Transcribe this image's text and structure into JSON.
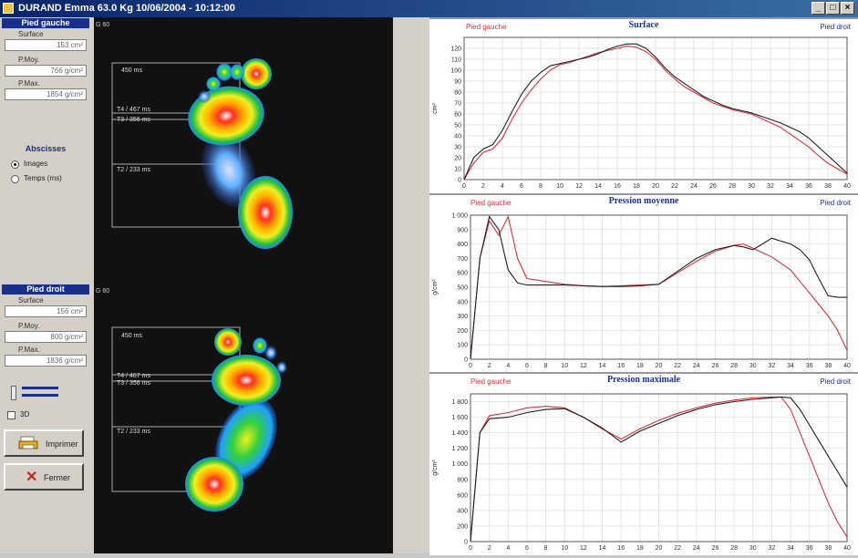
{
  "window": {
    "title": "DURAND Emma 63.0 Kg    10/06/2004 - 10:12:00"
  },
  "left_foot": {
    "header": "Pied gauche",
    "surface_label": "Surface",
    "surface_value": "153 cm²",
    "pmoy_label": "P.Moy.",
    "pmoy_value": "766 g/cm²",
    "pmax_label": "P.Max.",
    "pmax_value": "1854 g/cm²"
  },
  "abscisses": {
    "title": "Abscisses",
    "opt1": "Images",
    "opt2": "Temps (ms)"
  },
  "right_foot": {
    "header": "Pied droit",
    "surface_label": "Surface",
    "surface_value": "156 cm²",
    "pmoy_label": "P.Moy.",
    "pmoy_value": "800 g/cm²",
    "pmax_label": "P.Max.",
    "pmax_value": "1836 g/cm²"
  },
  "opt_3d": "3D",
  "buttons": {
    "print": "Imprimer",
    "close": "Fermer"
  },
  "foot_images": {
    "left": {
      "corner": "G 60",
      "t1": "450 ms",
      "t4": "T4 / 467 ms",
      "t3": "T3 / 356 ms",
      "t2": "T2 / 233 ms"
    },
    "right": {
      "corner": "G 60",
      "t1": "450 ms",
      "t4": "T4 / 467 ms",
      "t3": "T3 / 356 ms",
      "t2": "T2 / 233 ms"
    }
  },
  "colors": {
    "left": "#e0303a",
    "right": "#202020",
    "title": "#1a2fa0"
  },
  "chart_data": [
    {
      "type": "line",
      "title": "Surface",
      "ylabel": "cm²",
      "legend_left": "Pied gauche",
      "legend_right": "Pied droit",
      "xlim": [
        0,
        40
      ],
      "ylim": [
        0,
        130
      ],
      "yticks": [
        0,
        10,
        20,
        30,
        40,
        50,
        60,
        70,
        80,
        90,
        100,
        110,
        120
      ],
      "xticks": [
        0,
        2,
        4,
        6,
        8,
        10,
        12,
        14,
        16,
        18,
        20,
        22,
        24,
        26,
        28,
        30,
        32,
        34,
        36,
        38,
        40
      ],
      "series": [
        {
          "name": "Pied gauche",
          "color": "#e0303a",
          "x": [
            0,
            1,
            2,
            3,
            4,
            5,
            6,
            7,
            8,
            9,
            10,
            11,
            12,
            13,
            14,
            15,
            16,
            17,
            18,
            19,
            20,
            21,
            22,
            23,
            24,
            25,
            26,
            27,
            28,
            29,
            30,
            31,
            32,
            33,
            34,
            35,
            36,
            37,
            38,
            39,
            40
          ],
          "y": [
            0,
            15,
            25,
            28,
            38,
            55,
            70,
            82,
            92,
            100,
            105,
            107,
            110,
            113,
            116,
            118,
            120,
            122,
            121,
            117,
            110,
            100,
            92,
            85,
            80,
            75,
            70,
            67,
            64,
            62,
            60,
            56,
            52,
            48,
            42,
            36,
            30,
            22,
            15,
            10,
            5
          ]
        },
        {
          "name": "Pied droit",
          "color": "#202020",
          "x": [
            0,
            1,
            2,
            3,
            4,
            5,
            6,
            7,
            8,
            9,
            10,
            11,
            12,
            13,
            14,
            15,
            16,
            17,
            18,
            19,
            20,
            21,
            22,
            23,
            24,
            25,
            26,
            27,
            28,
            29,
            30,
            31,
            32,
            33,
            34,
            35,
            36,
            37,
            38,
            39,
            40
          ],
          "y": [
            0,
            20,
            28,
            32,
            45,
            62,
            78,
            90,
            98,
            104,
            106,
            108,
            110,
            112,
            115,
            119,
            122,
            124,
            124,
            120,
            112,
            102,
            94,
            88,
            82,
            76,
            72,
            68,
            65,
            63,
            61,
            58,
            55,
            52,
            48,
            44,
            38,
            30,
            22,
            14,
            6
          ]
        }
      ]
    },
    {
      "type": "line",
      "title": "Pression moyenne",
      "ylabel": "g/cm²",
      "legend_left": "Pied gauche",
      "legend_right": "Pied droit",
      "xlim": [
        0,
        40
      ],
      "ylim": [
        0,
        1000
      ],
      "yticks": [
        0,
        100,
        200,
        300,
        400,
        500,
        600,
        700,
        800,
        900,
        "1 000"
      ],
      "xticks": [
        0,
        2,
        4,
        6,
        8,
        10,
        12,
        14,
        16,
        18,
        20,
        22,
        24,
        26,
        28,
        30,
        32,
        34,
        36,
        38,
        40
      ],
      "series": [
        {
          "name": "Pied gauche",
          "color": "#e0303a",
          "x": [
            0,
            1,
            2,
            3,
            4,
            5,
            6,
            8,
            10,
            12,
            14,
            16,
            18,
            20,
            22,
            24,
            26,
            28,
            29,
            30,
            31,
            32,
            34,
            36,
            37,
            38,
            39,
            40
          ],
          "y": [
            0,
            700,
            960,
            860,
            990,
            700,
            560,
            540,
            520,
            510,
            505,
            510,
            515,
            520,
            600,
            680,
            750,
            790,
            800,
            770,
            740,
            710,
            620,
            460,
            380,
            300,
            200,
            60
          ]
        },
        {
          "name": "Pied droit",
          "color": "#202020",
          "x": [
            0,
            1,
            2,
            3,
            4,
            5,
            6,
            8,
            10,
            12,
            14,
            16,
            18,
            20,
            22,
            24,
            26,
            28,
            29,
            30,
            31,
            32,
            34,
            35,
            36,
            37,
            38,
            39,
            40
          ],
          "y": [
            0,
            700,
            990,
            900,
            620,
            530,
            515,
            515,
            515,
            510,
            505,
            505,
            510,
            520,
            610,
            700,
            760,
            790,
            780,
            760,
            800,
            840,
            800,
            760,
            690,
            560,
            440,
            430,
            430
          ]
        }
      ]
    },
    {
      "type": "line",
      "title": "Pression maximale",
      "ylabel": "g/cm²",
      "legend_left": "Pied gauche",
      "legend_right": "Pied droit",
      "xlim": [
        0,
        40
      ],
      "ylim": [
        0,
        1900
      ],
      "yticks": [
        0,
        200,
        400,
        600,
        800,
        "1 000",
        "1 200",
        "1 400",
        "1 600",
        "1 800"
      ],
      "xticks": [
        0,
        2,
        4,
        6,
        8,
        10,
        12,
        14,
        16,
        18,
        20,
        22,
        24,
        26,
        28,
        30,
        32,
        34,
        36,
        38,
        40
      ],
      "series": [
        {
          "name": "Pied gauche",
          "color": "#e0303a",
          "x": [
            0,
            1,
            2,
            4,
            6,
            8,
            10,
            12,
            14,
            16,
            18,
            20,
            22,
            24,
            26,
            28,
            30,
            32,
            33,
            34,
            35,
            36,
            37,
            38,
            39,
            40
          ],
          "y": [
            0,
            1400,
            1620,
            1660,
            1720,
            1740,
            1720,
            1600,
            1450,
            1320,
            1450,
            1560,
            1650,
            1720,
            1780,
            1820,
            1850,
            1860,
            1860,
            1700,
            1400,
            1100,
            800,
            500,
            250,
            60
          ]
        },
        {
          "name": "Pied droit",
          "color": "#202020",
          "x": [
            0,
            1,
            2,
            4,
            6,
            8,
            10,
            12,
            14,
            16,
            18,
            20,
            22,
            24,
            26,
            28,
            30,
            32,
            33,
            34,
            35,
            36,
            37,
            38,
            39,
            40
          ],
          "y": [
            0,
            1400,
            1580,
            1600,
            1660,
            1700,
            1710,
            1600,
            1460,
            1280,
            1420,
            1520,
            1620,
            1700,
            1760,
            1800,
            1830,
            1850,
            1860,
            1850,
            1700,
            1500,
            1300,
            1100,
            900,
            700
          ]
        }
      ]
    }
  ]
}
